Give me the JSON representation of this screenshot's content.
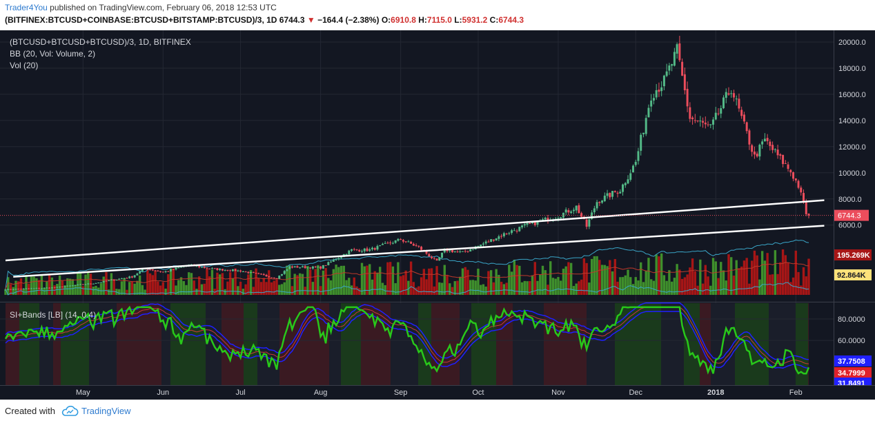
{
  "header": {
    "author": "Trader4You",
    "published": "published on TradingView.com, February 06, 2018 12:53 UTC",
    "symbol": "(BITFINEX:BTCUSD+COINBASE:BTCUSD+BITSTAMP:BTCUSD)/3, 1D",
    "last": "6744.3",
    "change": "−164.4 (−2.38%)",
    "o_label": "O:",
    "o": "6910.8",
    "h_label": "H:",
    "h": "7115.0",
    "l_label": "L:",
    "l": "5931.2",
    "c_label": "C:",
    "c": "6744.3"
  },
  "legend": {
    "line1": "(BTCUSD+BTCUSD+BTCUSD)/3, 1D, BITFINEX",
    "line2": "BB (20, Vol: Volume, 2)",
    "line3": "Vol (20)",
    "line4": "SI+Bands [LB] (14, 0.4)"
  },
  "footer": {
    "created": "Created with",
    "brand": "TradingView"
  },
  "colors": {
    "background": "#131722",
    "up": "#53b987",
    "down": "#eb4d5c",
    "vol_up": "#3f8f2c",
    "vol_down": "#a71616",
    "grid": "#242833",
    "si": "#28c81a",
    "band_blue": "#2020ff",
    "band_red": "#c83a3a",
    "band_orange": "#c87a1a"
  },
  "chart_data": [
    {
      "type": "candlestick",
      "title": "(BTCUSD+BTCUSD+BTCUSD)/3, 1D, BITFINEX",
      "x_ticks": [
        "May",
        "Jun",
        "Jul",
        "Aug",
        "Sep",
        "Oct",
        "Nov",
        "Dec",
        "2018",
        "Feb"
      ],
      "y_ticks": [
        "6000.0",
        "8000.0",
        "10000.0",
        "12000.0",
        "14000.0",
        "16000.0",
        "18000.0",
        "20000.0"
      ],
      "ylim": [
        2000,
        21500
      ],
      "last_price_label": "6744.3",
      "last_price": 6744.3,
      "close_anchors": [
        [
          "2017-04-01",
          1080
        ],
        [
          "2017-04-20",
          1220
        ],
        [
          "2017-05-05",
          1550
        ],
        [
          "2017-05-20",
          2050
        ],
        [
          "2017-05-25",
          2700
        ],
        [
          "2017-06-01",
          2400
        ],
        [
          "2017-06-11",
          2950
        ],
        [
          "2017-06-20",
          2650
        ],
        [
          "2017-07-01",
          2500
        ],
        [
          "2017-07-15",
          1950
        ],
        [
          "2017-07-20",
          2800
        ],
        [
          "2017-08-01",
          2750
        ],
        [
          "2017-08-13",
          4100
        ],
        [
          "2017-08-20",
          4100
        ],
        [
          "2017-09-01",
          4900
        ],
        [
          "2017-09-08",
          4300
        ],
        [
          "2017-09-15",
          3200
        ],
        [
          "2017-09-18",
          4100
        ],
        [
          "2017-09-25",
          3900
        ],
        [
          "2017-10-01",
          4400
        ],
        [
          "2017-10-12",
          5400
        ],
        [
          "2017-10-20",
          6000
        ],
        [
          "2017-11-01",
          6700
        ],
        [
          "2017-11-08",
          7400
        ],
        [
          "2017-11-12",
          5900
        ],
        [
          "2017-11-16",
          7800
        ],
        [
          "2017-11-25",
          8700
        ],
        [
          "2017-12-01",
          10800
        ],
        [
          "2017-12-07",
          16000
        ],
        [
          "2017-12-12",
          17000
        ],
        [
          "2017-12-17",
          19300
        ],
        [
          "2017-12-22",
          14200
        ],
        [
          "2017-12-30",
          13400
        ],
        [
          "2018-01-07",
          16500
        ],
        [
          "2018-01-16",
          11200
        ],
        [
          "2018-01-20",
          12500
        ],
        [
          "2018-01-30",
          10100
        ],
        [
          "2018-02-02",
          9000
        ],
        [
          "2018-02-05",
          6900
        ],
        [
          "2018-02-06",
          6744
        ]
      ],
      "trendlines": [
        {
          "from": [
            "2017-04-01",
            3300
          ],
          "to": [
            "2018-02-12",
            7900
          ]
        },
        {
          "from": [
            "2017-04-04",
            2050
          ],
          "to": [
            "2018-02-12",
            5950
          ]
        }
      ]
    },
    {
      "type": "bar",
      "title": "Vol (20)",
      "y_ticks": [
        "195.269K",
        "92.864K"
      ],
      "bands_ref": "BB (20, Vol: Volume, 2)"
    },
    {
      "type": "line",
      "title": "SI+Bands [LB] (14, 0.4)",
      "y_ticks": [
        "80.0000",
        "60.0000"
      ],
      "ylim": [
        27,
        93
      ],
      "last_values": {
        "upper": "37.7508",
        "si": "34.7999",
        "lower": "31.8491"
      }
    }
  ]
}
